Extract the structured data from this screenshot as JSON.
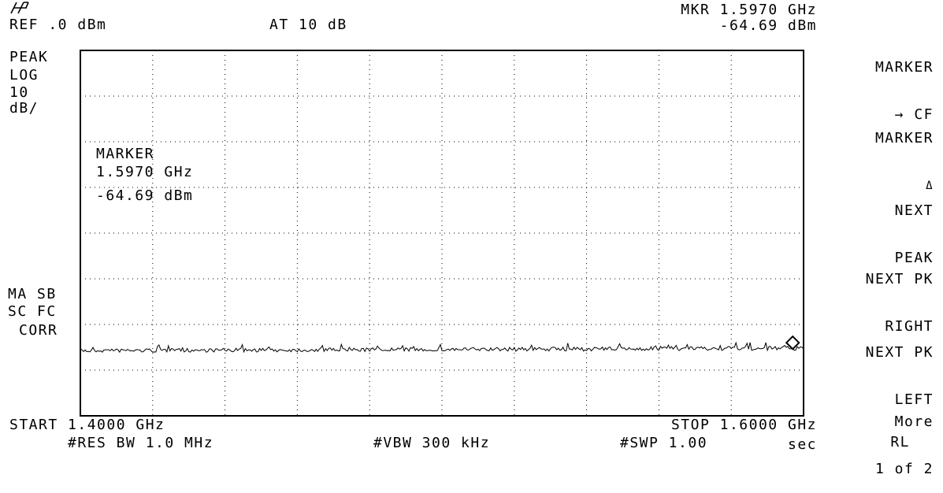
{
  "header": {
    "logo": "hp-logo",
    "ref_level": "REF .0 dBm",
    "attenuation": "AT 10 dB",
    "marker_freq": "MKR 1.5970 GHz",
    "marker_amp": "-64.69 dBm"
  },
  "left_annotations": {
    "detector": "PEAK",
    "scale_type": "LOG",
    "scale_value": "10",
    "scale_unit": "dB/",
    "status_line1": "MA SB",
    "status_line2": "SC FC",
    "status_line3": "CORR"
  },
  "marker_box": {
    "title": "MARKER",
    "freq": "1.5970 GHz",
    "amp": "-64.69 dBm"
  },
  "footer": {
    "start": "START 1.4000 GHz",
    "stop": "STOP 1.6000 GHz",
    "rbw": "#RES BW 1.0 MHz",
    "vbw": "#VBW 300 kHz",
    "sweep": "#SWP 1.00",
    "sweep_unit": "sec"
  },
  "softkeys": [
    {
      "line1": "MARKER",
      "line2": "→ CF"
    },
    {
      "line1": "MARKER",
      "line2": "Δ"
    },
    {
      "line1": "NEXT",
      "line2": "PEAK"
    },
    {
      "line1": "NEXT PK",
      "line2": "RIGHT"
    },
    {
      "line1": "NEXT PK",
      "line2": "LEFT"
    },
    {
      "line1": "More",
      "line2": "1 of 2"
    }
  ],
  "bottom_right": "RL",
  "chart_data": {
    "type": "line",
    "x_start_ghz": 1.4,
    "x_stop_ghz": 1.6,
    "ref_level_dbm": 0,
    "db_per_div": 10,
    "divisions": 8,
    "marker": {
      "x_ghz": 1.597,
      "y_dbm": -64.69
    },
    "trace_level_dbm": -64.7,
    "grid": true
  }
}
